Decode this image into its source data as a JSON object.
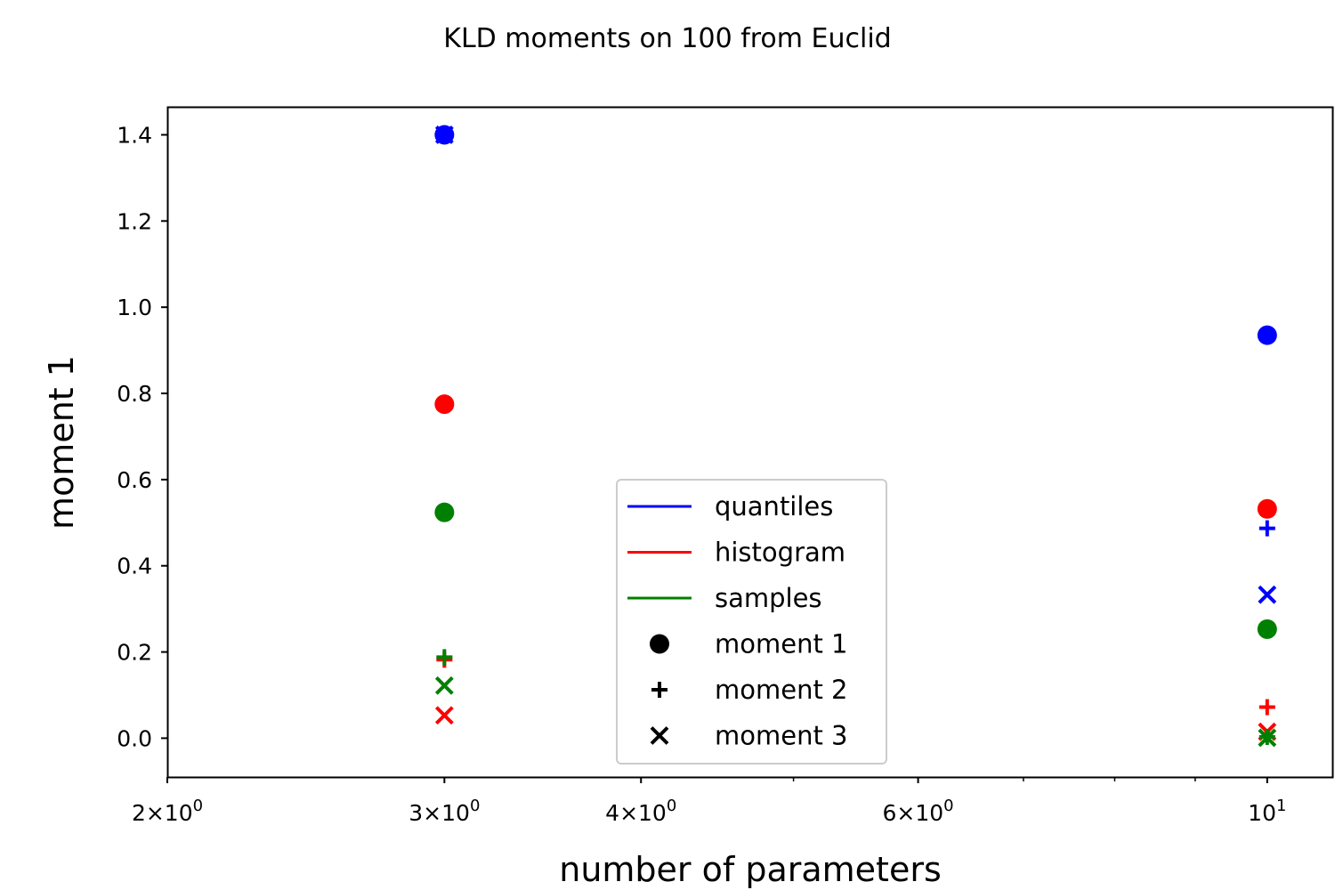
{
  "chart_data": {
    "type": "scatter",
    "title": "KLD moments on 100 from Euclid",
    "xlabel": "number of parameters",
    "ylabel": "moment 1",
    "xscale": "log",
    "xlim": [
      2,
      11
    ],
    "ylim": [
      -0.09,
      1.465
    ],
    "grid": false,
    "legend_position": "lower-center",
    "x_major_ticks": [
      {
        "value": 2,
        "mant": "2",
        "base": "10",
        "exp": "0"
      },
      {
        "value": 3,
        "mant": "3",
        "base": "10",
        "exp": "0"
      },
      {
        "value": 4,
        "mant": "4",
        "base": "10",
        "exp": "0"
      },
      {
        "value": 6,
        "mant": "6",
        "base": "10",
        "exp": "0"
      },
      {
        "value": 10,
        "mant": "",
        "base": "10",
        "exp": "1"
      }
    ],
    "x_minor_ticks": [
      5,
      7,
      8,
      9
    ],
    "y_ticks": [
      {
        "value": 0.0,
        "label": "0.0"
      },
      {
        "value": 0.2,
        "label": "0.2"
      },
      {
        "value": 0.4,
        "label": "0.4"
      },
      {
        "value": 0.6,
        "label": "0.6"
      },
      {
        "value": 0.8,
        "label": "0.8"
      },
      {
        "value": 1.0,
        "label": "1.0"
      },
      {
        "value": 1.2,
        "label": "1.2"
      },
      {
        "value": 1.4,
        "label": "1.4"
      }
    ],
    "x": [
      3,
      10
    ],
    "series": [
      {
        "name": "quantiles",
        "color": "#0000ff",
        "moment1": [
          1.4,
          0.935
        ],
        "moment2": [
          1.4,
          0.487
        ],
        "moment3": [
          1.4,
          0.333
        ]
      },
      {
        "name": "histogram",
        "color": "#ff0000",
        "moment1": [
          0.775,
          0.532
        ],
        "moment2": [
          0.182,
          0.072
        ],
        "moment3": [
          0.053,
          0.015
        ]
      },
      {
        "name": "samples",
        "color": "#008000",
        "moment1": [
          0.524,
          0.253
        ],
        "moment2": [
          0.188,
          0.003
        ],
        "moment3": [
          0.122,
          0.001
        ]
      }
    ],
    "marker_legend": [
      {
        "name": "moment 1",
        "marker": "circle"
      },
      {
        "name": "moment 2",
        "marker": "plus"
      },
      {
        "name": "moment 3",
        "marker": "x"
      }
    ]
  }
}
